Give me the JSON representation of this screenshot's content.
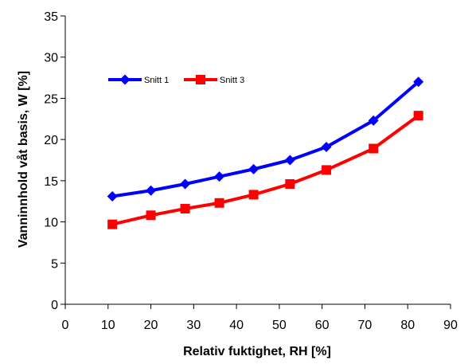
{
  "chart_data": {
    "type": "line",
    "title": "",
    "xlabel": "Relativ fuktighet, RH [%]",
    "ylabel": "Vanninnhold våt basis, W [%]",
    "xlim": [
      0,
      90
    ],
    "ylim": [
      0,
      35
    ],
    "xticks": [
      0,
      10,
      20,
      30,
      40,
      50,
      60,
      70,
      80,
      90
    ],
    "yticks": [
      0,
      5,
      10,
      15,
      20,
      25,
      30,
      35
    ],
    "grid": false,
    "legend_position": "top-left",
    "series": [
      {
        "name": "Snitt 1",
        "color": "#0000ff",
        "marker": "diamond",
        "x": [
          11,
          20,
          28,
          36,
          44,
          52.5,
          61,
          72,
          82.5
        ],
        "y": [
          13.1,
          13.8,
          14.6,
          15.5,
          16.4,
          17.5,
          19.1,
          22.3,
          27.0
        ]
      },
      {
        "name": "Snitt 3",
        "color": "#ff0000",
        "marker": "square",
        "x": [
          11,
          20,
          28,
          36,
          44,
          52.5,
          61,
          72,
          82.5
        ],
        "y": [
          9.7,
          10.8,
          11.6,
          12.3,
          13.3,
          14.6,
          16.3,
          18.9,
          22.9
        ]
      }
    ]
  }
}
